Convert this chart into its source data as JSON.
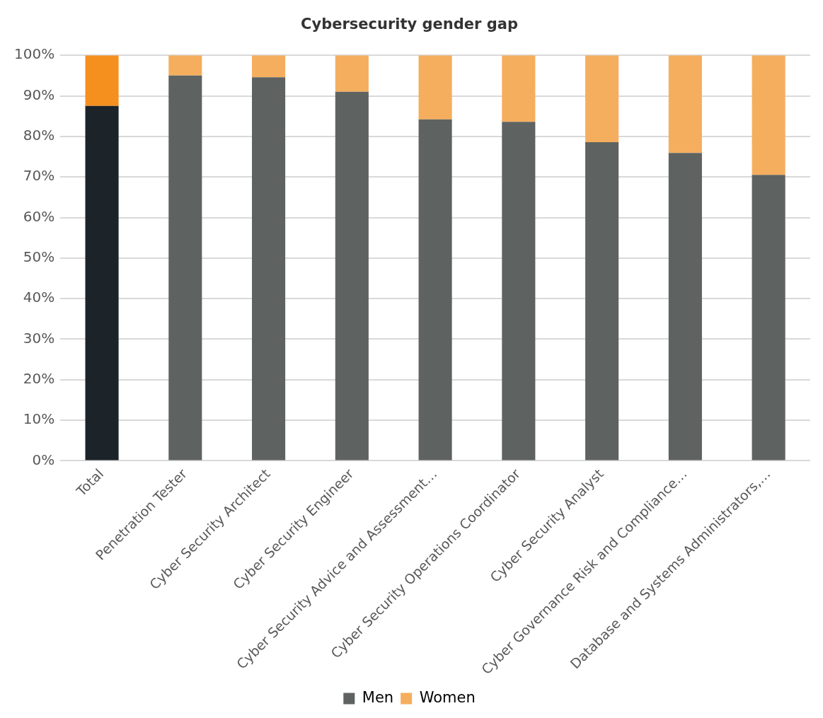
{
  "chart_data": {
    "type": "bar",
    "title": "Cybersecurity gender gap",
    "stacked": true,
    "categories": [
      "Total",
      "Penetration Tester",
      "Cyber Security Architect",
      "Cyber Security Engineer",
      "Cyber Security Advice and Assessment…",
      "Cyber Security Operations Coordinator",
      "Cyber Security Analyst",
      "Cyber Governance Risk and Compliance…",
      "Database and Systems Administrators,…"
    ],
    "series": [
      {
        "name": "Men",
        "color": "#5e6361",
        "colors": [
          "#1c2329",
          "#5e6361",
          "#5e6361",
          "#5e6361",
          "#5e6361",
          "#5e6361",
          "#5e6361",
          "#5e6361",
          "#5e6361"
        ],
        "values": [
          87.5,
          95,
          94.6,
          91,
          84.2,
          83.6,
          78.6,
          75.9,
          70.5
        ]
      },
      {
        "name": "Women",
        "color": "#f5ae5e",
        "colors": [
          "#f5901f",
          "#f5ae5e",
          "#f5ae5e",
          "#f5ae5e",
          "#f5ae5e",
          "#f5ae5e",
          "#f5ae5e",
          "#f5ae5e",
          "#f5ae5e"
        ],
        "values": [
          12.5,
          5,
          5.4,
          9,
          15.8,
          16.4,
          21.4,
          24.1,
          29.5
        ]
      }
    ],
    "ylim": [
      0,
      100
    ],
    "yticks": [
      {
        "value": 0,
        "label": "0%"
      },
      {
        "value": 10,
        "label": "10%"
      },
      {
        "value": 20,
        "label": "20%"
      },
      {
        "value": 30,
        "label": "30%"
      },
      {
        "value": 40,
        "label": "40%"
      },
      {
        "value": 50,
        "label": "50%"
      },
      {
        "value": 60,
        "label": "60%"
      },
      {
        "value": 70,
        "label": "70%"
      },
      {
        "value": 80,
        "label": "80%"
      },
      {
        "value": 90,
        "label": "90%"
      },
      {
        "value": 100,
        "label": "100%"
      }
    ],
    "grid": "y",
    "legend": "bottom"
  }
}
